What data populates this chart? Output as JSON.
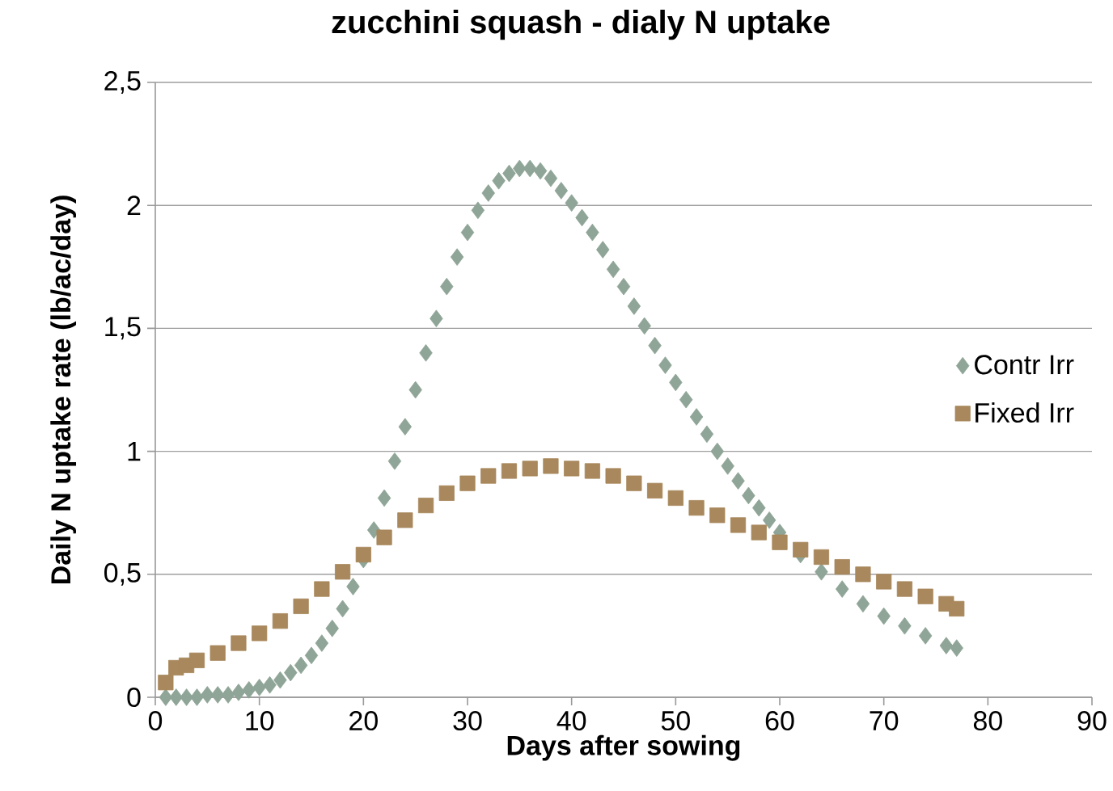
{
  "chart_data": {
    "type": "scatter",
    "title": "zucchini squash - dialy N uptake",
    "xlabel": "Days after sowing",
    "ylabel": "Daily N uptake rate (lb/ac/day)",
    "xlim": [
      0,
      90
    ],
    "xticks": [
      0,
      10,
      20,
      30,
      40,
      50,
      60,
      70,
      80,
      90
    ],
    "ylim": [
      0,
      2.5
    ],
    "yticks": [
      0,
      {
        "value": 0.5,
        "label": "0,5"
      },
      1,
      {
        "value": 1.5,
        "label": "1,5"
      },
      2,
      {
        "value": 2.5,
        "label": "2,5"
      }
    ],
    "grid": "y",
    "legend": "right",
    "series": [
      {
        "name": "Contr Irr",
        "color": "#8fa597",
        "marker": "diamond",
        "x": [
          1,
          2,
          3,
          4,
          5,
          6,
          7,
          8,
          9,
          10,
          11,
          12,
          13,
          14,
          15,
          16,
          17,
          18,
          19,
          20,
          21,
          22,
          23,
          24,
          25,
          26,
          27,
          28,
          29,
          30,
          31,
          32,
          33,
          34,
          35,
          36,
          37,
          38,
          39,
          40,
          41,
          42,
          43,
          44,
          45,
          46,
          47,
          48,
          49,
          50,
          51,
          52,
          53,
          54,
          55,
          56,
          57,
          58,
          59,
          60,
          62,
          64,
          66,
          68,
          70,
          72,
          74,
          76,
          77
        ],
        "values": [
          0,
          0,
          0,
          0,
          0.01,
          0.01,
          0.01,
          0.02,
          0.03,
          0.04,
          0.05,
          0.07,
          0.1,
          0.13,
          0.17,
          0.22,
          0.28,
          0.36,
          0.45,
          0.56,
          0.68,
          0.81,
          0.96,
          1.1,
          1.25,
          1.4,
          1.54,
          1.67,
          1.79,
          1.89,
          1.98,
          2.05,
          2.1,
          2.13,
          2.15,
          2.15,
          2.14,
          2.11,
          2.06,
          2.01,
          1.95,
          1.89,
          1.82,
          1.74,
          1.67,
          1.59,
          1.51,
          1.43,
          1.35,
          1.28,
          1.21,
          1.14,
          1.07,
          1.0,
          0.94,
          0.88,
          0.82,
          0.77,
          0.72,
          0.67,
          0.58,
          0.51,
          0.44,
          0.38,
          0.33,
          0.29,
          0.25,
          0.21,
          0.2
        ]
      },
      {
        "name": "Fixed Irr",
        "color": "#a8885c",
        "marker": "square",
        "x": [
          1,
          2,
          3,
          4,
          6,
          8,
          10,
          12,
          14,
          16,
          18,
          20,
          22,
          24,
          26,
          28,
          30,
          32,
          34,
          36,
          38,
          40,
          42,
          44,
          46,
          48,
          50,
          52,
          54,
          56,
          58,
          60,
          62,
          64,
          66,
          68,
          70,
          72,
          74,
          76,
          77
        ],
        "values": [
          0.06,
          0.12,
          0.13,
          0.15,
          0.18,
          0.22,
          0.26,
          0.31,
          0.37,
          0.44,
          0.51,
          0.58,
          0.65,
          0.72,
          0.78,
          0.83,
          0.87,
          0.9,
          0.92,
          0.93,
          0.94,
          0.93,
          0.92,
          0.9,
          0.87,
          0.84,
          0.81,
          0.77,
          0.74,
          0.7,
          0.67,
          0.63,
          0.6,
          0.57,
          0.53,
          0.5,
          0.47,
          0.44,
          0.41,
          0.38,
          0.36
        ]
      }
    ]
  }
}
